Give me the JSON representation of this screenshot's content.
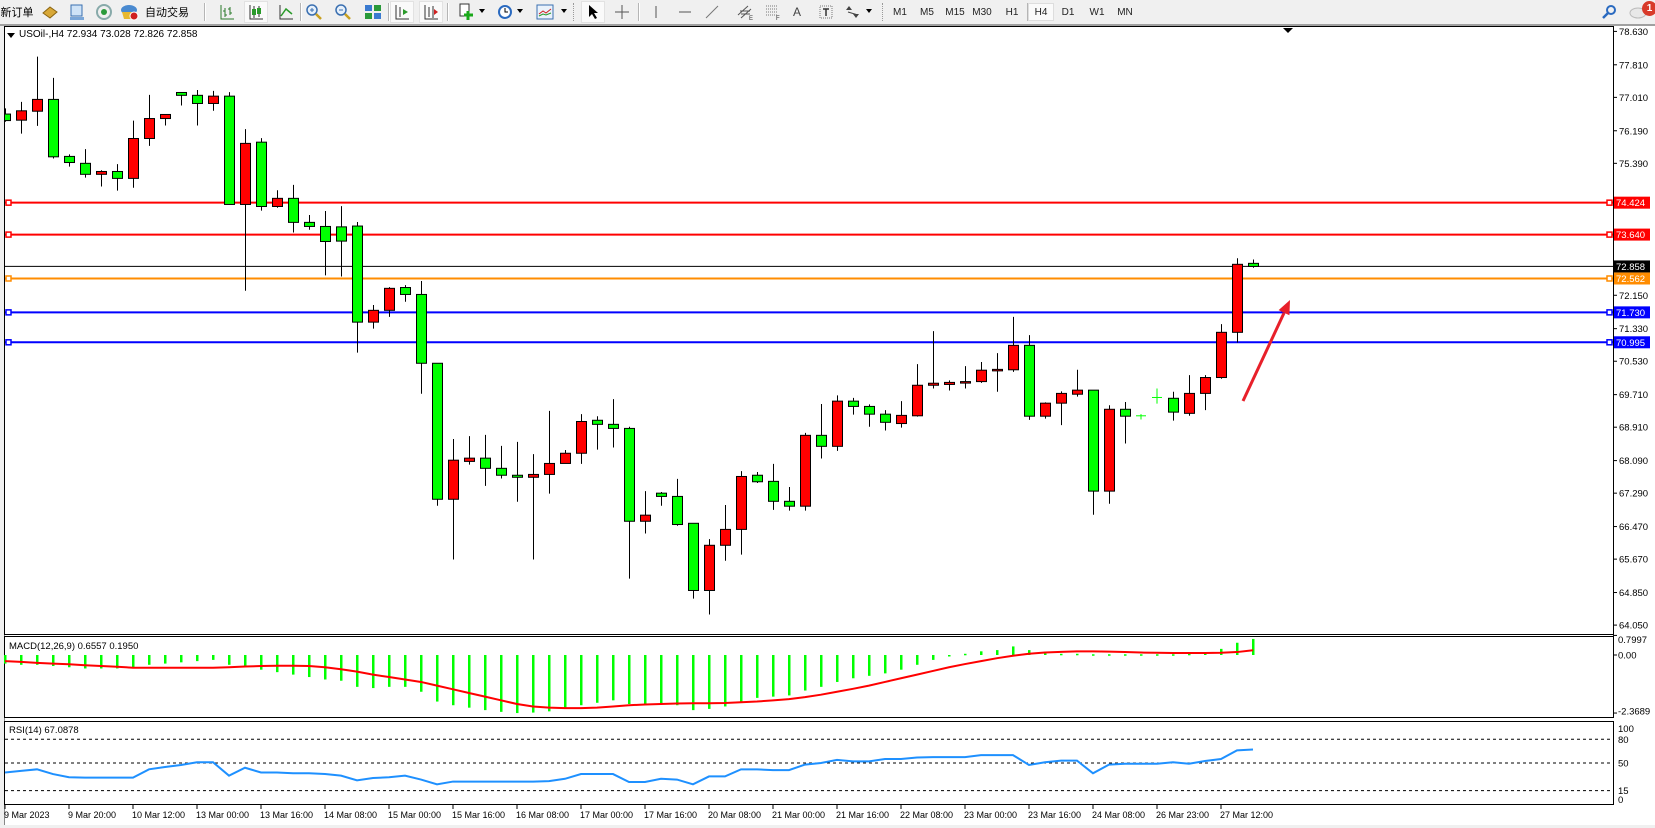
{
  "toolbar": {
    "new_order_label": "新订单",
    "auto_trading_label": "自动交易",
    "timeframes": [
      "M1",
      "M5",
      "M15",
      "M30",
      "H1",
      "H4",
      "D1",
      "W1",
      "MN"
    ],
    "active_timeframe": "H4",
    "notification_count": "1",
    "icons": [
      "market-watch-icon",
      "data-window-icon",
      "navigator-icon",
      "auto-trading-icon",
      "bar-chart-icon",
      "candlestick-icon",
      "line-chart-icon",
      "zoom-in-icon",
      "zoom-out-icon",
      "tile-windows-icon",
      "auto-scroll-icon",
      "chart-shift-icon",
      "indicators-icon",
      "periods-icon",
      "templates-icon",
      "cursor-icon",
      "crosshair-icon",
      "vertical-line-icon",
      "horizontal-line-icon",
      "trendline-icon",
      "equidistant-channel-icon",
      "fibonacci-icon",
      "text-icon",
      "text-label-icon",
      "arrows-icon",
      "search-icon",
      "notifications-icon"
    ]
  },
  "chart": {
    "symbol_info": "USOil-,H4  72.934 73.028 72.826 72.858",
    "macd_label": "MACD(12,26,9) 0.6557 0.1950",
    "rsi_label": "RSI(14) 67.0878",
    "colors": {
      "bull": "#ff0000",
      "bear": "#00ff00",
      "macd_hist": "#00ff00",
      "macd_signal": "#ff0000",
      "rsi": "#1e90ff",
      "arrow": "#e8202a"
    },
    "price_ticks": [
      "78.630",
      "77.810",
      "77.010",
      "76.190",
      "75.390",
      "72.150",
      "71.330",
      "70.530",
      "69.710",
      "68.910",
      "68.090",
      "67.290",
      "66.470",
      "65.670",
      "64.850",
      "64.050"
    ],
    "current_price": {
      "value": "72.858",
      "color": "#000000"
    },
    "levels": [
      {
        "value": "74.424",
        "color": "#ff0000"
      },
      {
        "value": "73.640",
        "color": "#ff0000"
      },
      {
        "value": "72.562",
        "color": "#ff8c00"
      },
      {
        "value": "71.730",
        "color": "#0000ff"
      },
      {
        "value": "70.995",
        "color": "#0000ff"
      }
    ],
    "macd_ticks": [
      "0.7997",
      "0.00",
      "-2.3689"
    ],
    "rsi_ticks": [
      "100",
      "80",
      "50",
      "15",
      "0"
    ],
    "rsi_levels": [
      80,
      50,
      15
    ],
    "time_labels": [
      "9 Mar 2023",
      "9 Mar 20:00",
      "10 Mar 12:00",
      "13 Mar 00:00",
      "13 Mar 16:00",
      "14 Mar 08:00",
      "15 Mar 00:00",
      "15 Mar 16:00",
      "16 Mar 08:00",
      "17 Mar 00:00",
      "17 Mar 16:00",
      "20 Mar 08:00",
      "21 Mar 00:00",
      "21 Mar 16:00",
      "22 Mar 08:00",
      "23 Mar 00:00",
      "23 Mar 16:00",
      "24 Mar 08:00",
      "26 Mar 23:00",
      "27 Mar 12:00"
    ],
    "candles_ohlc": [
      [
        76.6,
        76.74,
        76.41,
        76.44
      ],
      [
        76.45,
        76.9,
        76.12,
        76.68
      ],
      [
        76.67,
        78.01,
        76.31,
        76.96
      ],
      [
        76.96,
        77.49,
        75.51,
        75.55
      ],
      [
        75.56,
        75.61,
        75.31,
        75.41
      ],
      [
        75.39,
        75.74,
        75.04,
        75.12
      ],
      [
        75.12,
        75.22,
        74.82,
        75.19
      ],
      [
        75.19,
        75.37,
        74.72,
        75.02
      ],
      [
        75.02,
        76.44,
        74.79,
        76.0
      ],
      [
        76.0,
        77.07,
        75.82,
        76.49
      ],
      [
        76.49,
        76.59,
        76.32,
        76.59
      ],
      [
        77.13,
        77.13,
        76.81,
        77.06
      ],
      [
        77.06,
        77.19,
        76.32,
        76.86
      ],
      [
        76.86,
        77.17,
        76.68,
        77.04
      ],
      [
        77.04,
        77.14,
        74.38,
        74.38
      ],
      [
        74.38,
        76.23,
        72.26,
        75.88
      ],
      [
        75.91,
        76.01,
        74.23,
        74.33
      ],
      [
        74.33,
        74.73,
        74.3,
        74.53
      ],
      [
        74.53,
        74.86,
        73.69,
        73.94
      ],
      [
        73.94,
        74.12,
        73.76,
        73.84
      ],
      [
        73.84,
        74.22,
        72.64,
        73.47
      ],
      [
        73.83,
        74.34,
        72.61,
        73.48
      ],
      [
        73.85,
        73.95,
        70.74,
        71.49
      ],
      [
        71.49,
        71.91,
        71.33,
        71.78
      ],
      [
        71.78,
        72.35,
        71.62,
        72.32
      ],
      [
        72.34,
        72.4,
        71.99,
        72.17
      ],
      [
        72.17,
        72.5,
        69.73,
        70.48
      ],
      [
        70.48,
        70.48,
        66.98,
        67.14
      ],
      [
        67.14,
        68.62,
        65.66,
        68.1
      ],
      [
        68.07,
        68.69,
        67.99,
        68.15
      ],
      [
        68.15,
        68.72,
        67.47,
        67.9
      ],
      [
        67.9,
        68.45,
        67.65,
        67.73
      ],
      [
        67.73,
        68.55,
        67.08,
        67.68
      ],
      [
        67.68,
        68.25,
        65.66,
        67.75
      ],
      [
        67.75,
        69.31,
        67.28,
        68.02
      ],
      [
        68.02,
        68.35,
        68.02,
        68.27
      ],
      [
        68.27,
        69.23,
        68.01,
        69.05
      ],
      [
        69.08,
        69.18,
        68.36,
        68.98
      ],
      [
        68.98,
        69.6,
        68.41,
        68.88
      ],
      [
        68.88,
        68.92,
        65.19,
        66.6
      ],
      [
        66.6,
        67.34,
        66.3,
        66.75
      ],
      [
        67.29,
        67.32,
        66.98,
        67.21
      ],
      [
        67.21,
        67.64,
        66.49,
        66.52
      ],
      [
        66.55,
        66.55,
        64.7,
        64.9
      ],
      [
        64.9,
        66.16,
        64.31,
        66.01
      ],
      [
        66.01,
        67.0,
        65.63,
        66.4
      ],
      [
        66.4,
        67.83,
        65.78,
        67.7
      ],
      [
        67.73,
        67.81,
        67.54,
        67.57
      ],
      [
        67.58,
        68.01,
        66.88,
        67.09
      ],
      [
        67.09,
        67.44,
        66.86,
        66.97
      ],
      [
        66.97,
        68.77,
        66.86,
        68.71
      ],
      [
        68.71,
        69.48,
        68.14,
        68.44
      ],
      [
        68.44,
        69.69,
        68.33,
        69.55
      ],
      [
        69.55,
        69.63,
        69.22,
        69.42
      ],
      [
        69.42,
        69.47,
        68.92,
        69.23
      ],
      [
        69.23,
        69.33,
        68.83,
        69.03
      ],
      [
        69.0,
        69.55,
        68.9,
        69.2
      ],
      [
        69.19,
        70.46,
        69.17,
        69.94
      ],
      [
        69.94,
        71.27,
        69.86,
        69.99
      ],
      [
        69.96,
        70.06,
        69.81,
        70.01
      ],
      [
        70.02,
        70.41,
        69.86,
        70.03
      ],
      [
        70.03,
        70.51,
        70.0,
        70.31
      ],
      [
        70.32,
        70.73,
        69.78,
        70.33
      ],
      [
        70.32,
        71.62,
        70.27,
        70.92
      ],
      [
        70.92,
        71.17,
        69.09,
        69.18
      ],
      [
        69.18,
        69.52,
        69.12,
        69.5
      ],
      [
        69.5,
        69.79,
        68.96,
        69.74
      ],
      [
        69.72,
        70.32,
        69.66,
        69.82
      ],
      [
        69.82,
        69.82,
        66.76,
        67.34
      ],
      [
        67.34,
        69.45,
        67.03,
        69.35
      ],
      [
        69.35,
        69.53,
        68.51,
        69.18
      ],
      [
        69.19,
        69.23,
        69.1,
        69.19
      ],
      [
        69.64,
        69.86,
        69.49,
        69.64
      ],
      [
        69.62,
        69.78,
        69.07,
        69.28
      ],
      [
        69.25,
        70.19,
        69.19,
        69.74
      ],
      [
        69.74,
        70.19,
        69.33,
        70.13
      ],
      [
        70.13,
        71.44,
        70.1,
        71.24
      ],
      [
        71.24,
        73.06,
        70.99,
        72.91
      ],
      [
        72.934,
        73.028,
        72.826,
        72.858
      ]
    ],
    "macd_main": [
      -0.35,
      -0.4,
      -0.4,
      -0.45,
      -0.5,
      -0.55,
      -0.55,
      -0.55,
      -0.5,
      -0.4,
      -0.35,
      -0.3,
      -0.25,
      -0.2,
      -0.4,
      -0.45,
      -0.6,
      -0.7,
      -0.8,
      -0.9,
      -1.0,
      -1.05,
      -1.3,
      -1.35,
      -1.3,
      -1.3,
      -1.5,
      -1.9,
      -2.05,
      -2.15,
      -2.25,
      -2.32,
      -2.37,
      -2.35,
      -2.3,
      -2.2,
      -2.05,
      -1.95,
      -1.85,
      -2.0,
      -2.05,
      -2.0,
      -2.05,
      -2.25,
      -2.2,
      -2.1,
      -1.9,
      -1.75,
      -1.7,
      -1.65,
      -1.45,
      -1.3,
      -1.1,
      -0.95,
      -0.85,
      -0.75,
      -0.6,
      -0.4,
      -0.2,
      -0.05,
      0.05,
      0.15,
      0.2,
      0.35,
      0.2,
      0.1,
      0.05,
      0.05,
      0.03,
      0.03,
      0.03,
      0.03,
      0.03,
      0.03,
      0.05,
      0.1,
      0.25,
      0.5,
      0.6557
    ],
    "macd_signal": [
      -0.25,
      -0.28,
      -0.32,
      -0.35,
      -0.38,
      -0.42,
      -0.45,
      -0.48,
      -0.52,
      -0.52,
      -0.52,
      -0.52,
      -0.52,
      -0.52,
      -0.5,
      -0.47,
      -0.45,
      -0.44,
      -0.44,
      -0.45,
      -0.5,
      -0.58,
      -0.68,
      -0.8,
      -0.9,
      -1.0,
      -1.1,
      -1.25,
      -1.4,
      -1.55,
      -1.7,
      -1.85,
      -2.0,
      -2.1,
      -2.15,
      -2.17,
      -2.17,
      -2.15,
      -2.1,
      -2.05,
      -2.02,
      -2.0,
      -1.98,
      -1.97,
      -1.97,
      -1.96,
      -1.93,
      -1.9,
      -1.85,
      -1.8,
      -1.72,
      -1.62,
      -1.5,
      -1.38,
      -1.25,
      -1.1,
      -0.95,
      -0.8,
      -0.65,
      -0.5,
      -0.37,
      -0.25,
      -0.13,
      -0.03,
      0.05,
      0.1,
      0.13,
      0.15,
      0.15,
      0.14,
      0.12,
      0.1,
      0.09,
      0.08,
      0.08,
      0.08,
      0.09,
      0.12,
      0.195
    ],
    "rsi": [
      38,
      40,
      42,
      36,
      32,
      31.5,
      31.5,
      31.5,
      31.5,
      42,
      45,
      47.5,
      51,
      51,
      34,
      44,
      38,
      38,
      37,
      37,
      36,
      34,
      28,
      31,
      32,
      34,
      29,
      23,
      26.5,
      26.5,
      26.5,
      26.5,
      26.5,
      26.5,
      27,
      30,
      36,
      36,
      36,
      26,
      26,
      30,
      29,
      23,
      33,
      33,
      42,
      42,
      41,
      41,
      48,
      50,
      54,
      52,
      52,
      55,
      55,
      57,
      57.5,
      57.5,
      57.5,
      60,
      60,
      60,
      47.5,
      51,
      53,
      53,
      37,
      48,
      49,
      49,
      49,
      51,
      49,
      52.5,
      55,
      66,
      67.09
    ]
  }
}
